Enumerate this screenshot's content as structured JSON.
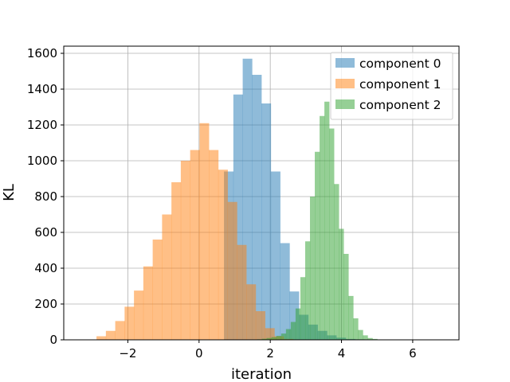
{
  "chart_data": {
    "type": "bar",
    "xlabel": "iteration",
    "ylabel": "KL",
    "xlim": [
      -3.8,
      7.3
    ],
    "ylim": [
      0,
      1640
    ],
    "x_ticks": [
      -2,
      0,
      2,
      4,
      6
    ],
    "y_ticks": [
      0,
      200,
      400,
      600,
      800,
      1000,
      1200,
      1400,
      1600
    ],
    "grid": true,
    "legend_position": "top-right",
    "series": [
      {
        "name": "component 0",
        "color": "#1f77b4",
        "bin_start": 0.7,
        "bin_width": 0.263,
        "counts": [
          940,
          1370,
          1570,
          1480,
          1320,
          940,
          540,
          270,
          140,
          85,
          50,
          25,
          12,
          5,
          3,
          2,
          1,
          1
        ]
      },
      {
        "name": "component 1",
        "color": "#ff7f0e",
        "bin_start": -2.88,
        "bin_width": 0.263,
        "counts": [
          20,
          50,
          105,
          185,
          275,
          410,
          560,
          700,
          880,
          1000,
          1060,
          1210,
          1060,
          950,
          770,
          530,
          310,
          160,
          65,
          20,
          5
        ]
      },
      {
        "name": "component 2",
        "color": "#2ca02c",
        "bin_start": 0.28,
        "bin_width": 0.135,
        "counts": [
          0,
          0,
          0,
          0,
          0,
          0,
          0,
          0,
          0,
          2,
          3,
          6,
          10,
          15,
          22,
          35,
          60,
          100,
          175,
          350,
          550,
          800,
          1050,
          1250,
          1330,
          1180,
          870,
          620,
          480,
          245,
          120,
          55,
          25,
          10,
          5,
          2
        ]
      }
    ]
  }
}
